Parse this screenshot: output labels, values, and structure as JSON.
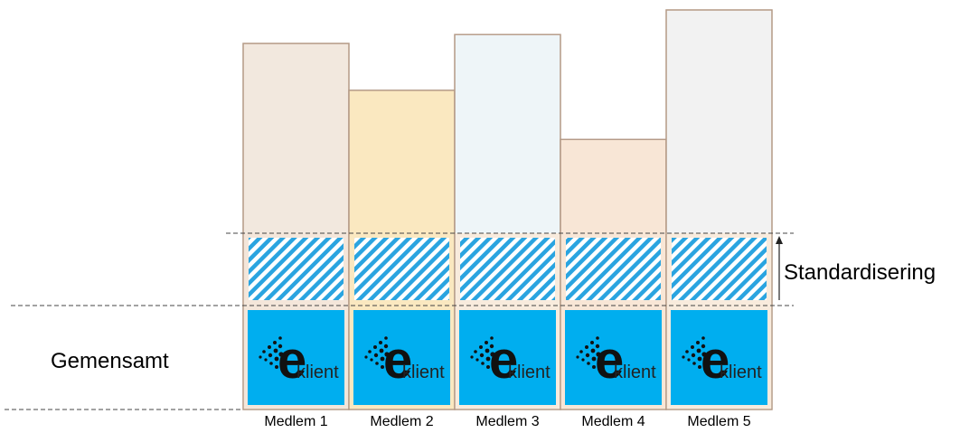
{
  "labels": {
    "standardisering": "Standardisering",
    "gemensamt": "Gemensamt"
  },
  "brand": {
    "letter": "e",
    "word": "klient"
  },
  "colors": {
    "outline": "#b49a86",
    "common_fill": "#00aeef",
    "hatch_stripe": "#2aa4e0",
    "standard_band_fill": "#f8ebdd",
    "dashed_line": "#444444"
  },
  "members": [
    {
      "name": "Medlem 1",
      "level": 0.85,
      "fill": "#f2e8de",
      "band_fill": "#f4e6da"
    },
    {
      "name": "Medlem 2",
      "level": 0.64,
      "fill": "#fae8c0",
      "band_fill": "#fae8c0"
    },
    {
      "name": "Medlem 3",
      "level": 0.89,
      "fill": "#eef5f8",
      "band_fill": "#f8ebdd"
    },
    {
      "name": "Medlem 4",
      "level": 0.42,
      "fill": "#f8e6d6",
      "band_fill": "#f8e6d6"
    },
    {
      "name": "Medlem 5",
      "level": 1.0,
      "fill": "#f2f2f2",
      "band_fill": "#f8ebdd"
    }
  ]
}
